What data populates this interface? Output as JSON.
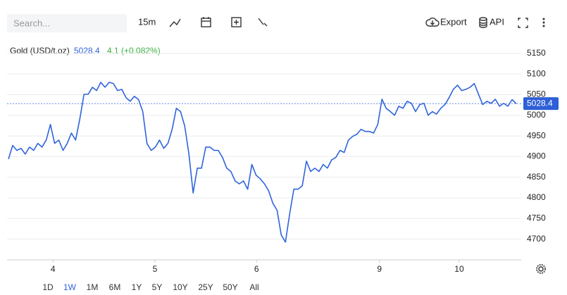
{
  "toolbar": {
    "search_placeholder": "Search...",
    "interval": "15m",
    "export": "Export",
    "api": "API"
  },
  "chart_data": {
    "type": "line",
    "legend": {
      "name": "Gold (USD/t.oz)",
      "change": "4.1 (+0.082%)"
    },
    "last_price": 5028.4,
    "series": [
      {
        "name": "Gold (USD/t.oz)",
        "color": "#2f64dc",
        "values": [
          4894,
          4927,
          4915,
          4920,
          4906,
          4923,
          4915,
          4932,
          4923,
          4940,
          4978,
          4932,
          4940,
          4915,
          4932,
          4957,
          4940,
          4991,
          5051,
          5051,
          5068,
          5060,
          5080,
          5068,
          5080,
          5077,
          5060,
          5063,
          5043,
          5034,
          5046,
          5038,
          5009,
          4932,
          4915,
          4923,
          4940,
          4920,
          4932,
          4966,
          5017,
          5009,
          4974,
          4906,
          4812,
          4872,
          4872,
          4923,
          4923,
          4915,
          4915,
          4898,
          4872,
          4864,
          4841,
          4834,
          4841,
          4821,
          4881,
          4855,
          4846,
          4834,
          4817,
          4787,
          4770,
          4710,
          4693,
          4761,
          4821,
          4821,
          4829,
          4889,
          4864,
          4872,
          4864,
          4881,
          4872,
          4892,
          4898,
          4915,
          4910,
          4940,
          4949,
          4954,
          4966,
          4961,
          4961,
          4957,
          4978,
          5039,
          5017,
          5009,
          5000,
          5022,
          5017,
          5034,
          5029,
          5009,
          5026,
          5029,
          5000,
          5009,
          5003,
          5017,
          5026,
          5043,
          5063,
          5073,
          5060,
          5063,
          5068,
          5077,
          5051,
          5026,
          5034,
          5029,
          5039,
          5022,
          5029,
          5022,
          5038,
          5028
        ]
      }
    ],
    "xlim": [
      0,
      121
    ],
    "xticks": [
      {
        "value": 10.6,
        "label": "4"
      },
      {
        "value": 34.9,
        "label": "5"
      },
      {
        "value": 59.1,
        "label": "6"
      },
      {
        "value": 88.4,
        "label": "9"
      },
      {
        "value": 107.4,
        "label": "10"
      }
    ],
    "ylim": [
      4650,
      5177
    ],
    "yticks": [
      4700,
      4750,
      4800,
      4850,
      4900,
      4950,
      5000,
      5050,
      5100,
      5150
    ],
    "grid": true
  },
  "range_buttons": [
    "1D",
    "1W",
    "1M",
    "6M",
    "1Y",
    "5Y",
    "10Y",
    "25Y",
    "50Y",
    "All"
  ],
  "active_range": 1
}
